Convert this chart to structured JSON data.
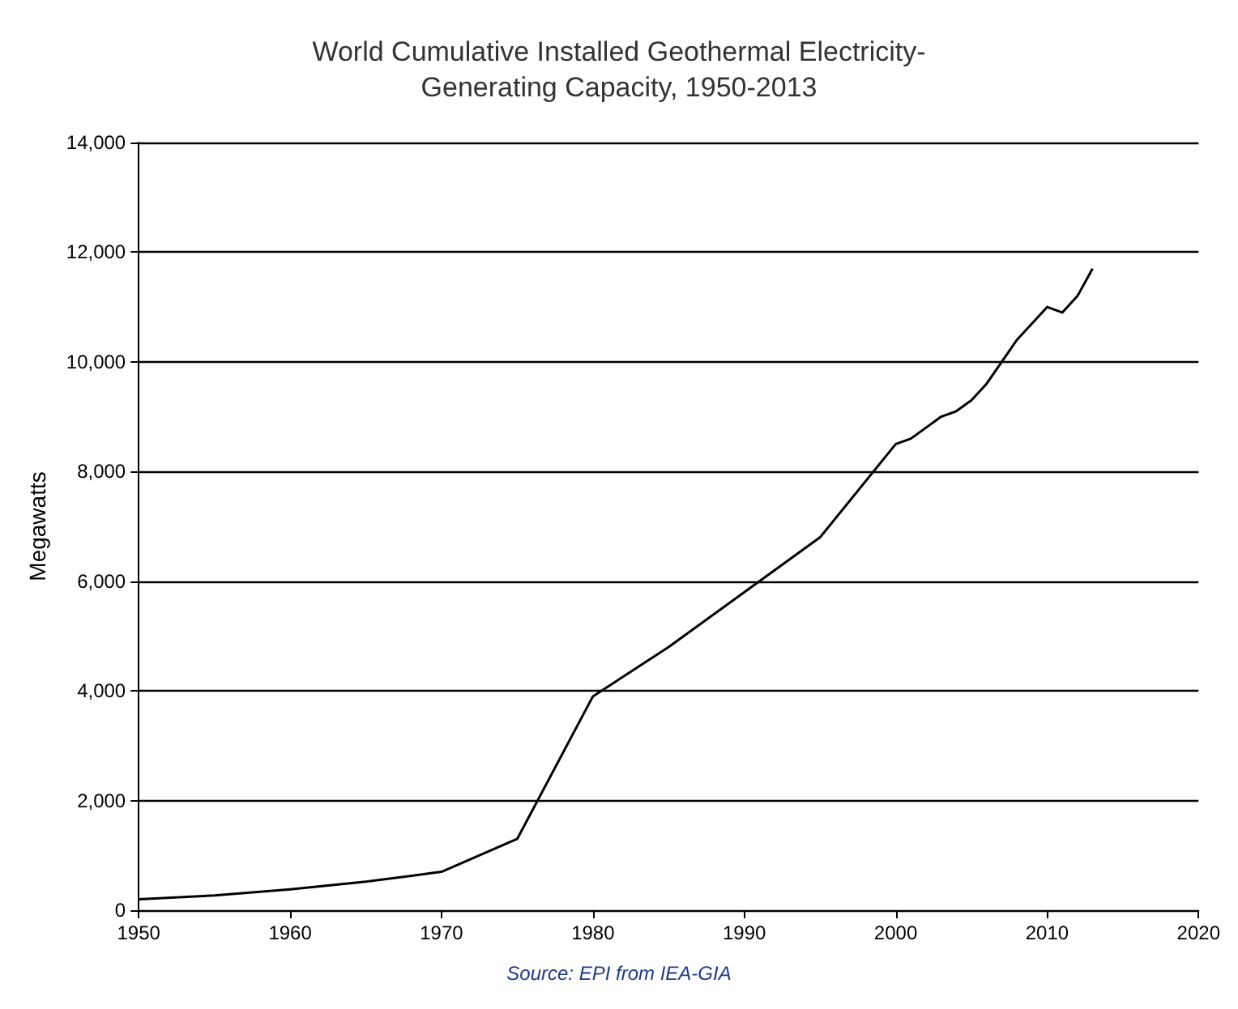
{
  "chart_data": {
    "type": "line",
    "title": "World Cumulative Installed Geothermal Electricity-\nGenerating Capacity, 1950-2013",
    "ylabel": "Megawatts",
    "annotations": [
      "Source: EPI from IEA-GIA"
    ],
    "x": [
      1950,
      1955,
      1960,
      1965,
      1970,
      1975,
      1980,
      1985,
      1990,
      1995,
      2000,
      2001,
      2002,
      2003,
      2004,
      2005,
      2006,
      2007,
      2008,
      2009,
      2010,
      2011,
      2012,
      2013
    ],
    "series": [
      {
        "color": "#000000",
        "values": [
          200,
          270,
          380,
          520,
          700,
          1300,
          3900,
          4800,
          5800,
          6800,
          8500,
          8600,
          8800,
          9000,
          9100,
          9300,
          9600,
          10000,
          10400,
          10700,
          11000,
          10900,
          11200,
          11700
        ]
      }
    ],
    "xlim": [
      1950,
      2020
    ],
    "xticks": [
      1950,
      1960,
      1970,
      1980,
      1990,
      2000,
      2010,
      2020
    ],
    "ylim": [
      0,
      14000
    ],
    "yticks": [
      0,
      {
        "value": 2000,
        "label": "2,000"
      },
      {
        "value": 4000,
        "label": "4,000"
      },
      {
        "value": 6000,
        "label": "6,000"
      },
      {
        "value": 8000,
        "label": "8,000"
      },
      {
        "value": 10000,
        "label": "10,000"
      },
      {
        "value": 12000,
        "label": "12,000"
      },
      {
        "value": 14000,
        "label": "14,000"
      }
    ],
    "grid": "y",
    "marker": "none",
    "line_style": "solid"
  }
}
